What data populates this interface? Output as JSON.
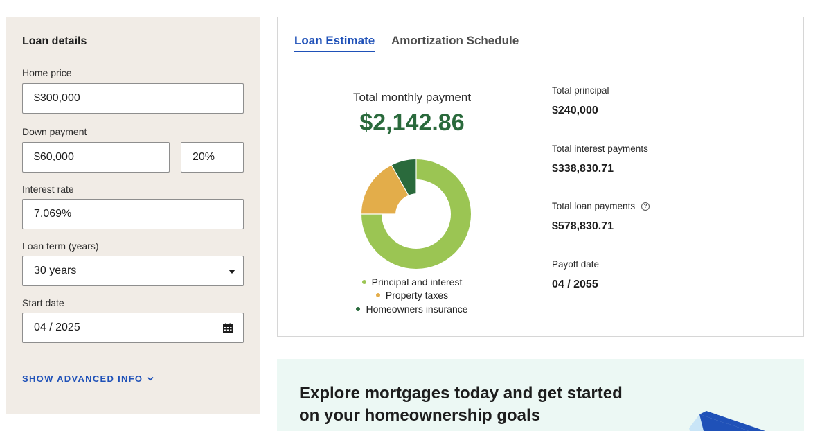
{
  "loan_details": {
    "title": "Loan details",
    "home_price": {
      "label": "Home price",
      "value": "$300,000"
    },
    "down_payment": {
      "label": "Down payment",
      "value": "$60,000",
      "percent": "20%"
    },
    "interest_rate": {
      "label": "Interest rate",
      "value": "7.069%"
    },
    "loan_term": {
      "label": "Loan term (years)",
      "value": "30 years"
    },
    "start_date": {
      "label": "Start date",
      "value": "04 / 2025"
    },
    "show_advanced": "SHOW ADVANCED INFO"
  },
  "tabs": [
    {
      "label": "Loan Estimate",
      "active": true
    },
    {
      "label": "Amortization Schedule",
      "active": false
    }
  ],
  "estimate": {
    "total_monthly_label": "Total monthly payment",
    "total_monthly_value": "$2,142.86",
    "legend": [
      {
        "label": "Principal and interest",
        "color": "#9bc553"
      },
      {
        "label": "Property taxes",
        "color": "#e3ad4a"
      },
      {
        "label": "Homeowners insurance",
        "color": "#2a6a3c"
      }
    ],
    "stats": [
      {
        "label": "Total principal",
        "value": "$240,000"
      },
      {
        "label": "Total interest payments",
        "value": "$338,830.71"
      },
      {
        "label": "Total loan payments",
        "value": "$578,830.71"
      },
      {
        "label": "Payoff date",
        "value": "04 / 2055"
      }
    ]
  },
  "promo": {
    "line1": "Explore mortgages today and get started",
    "line2": "on your homeownership goals"
  },
  "colors": {
    "accent_blue": "#1f51b8",
    "payment_green": "#2a6a3c",
    "panel_bg": "#f1ece6",
    "promo_bg": "#ecf8f4"
  }
}
